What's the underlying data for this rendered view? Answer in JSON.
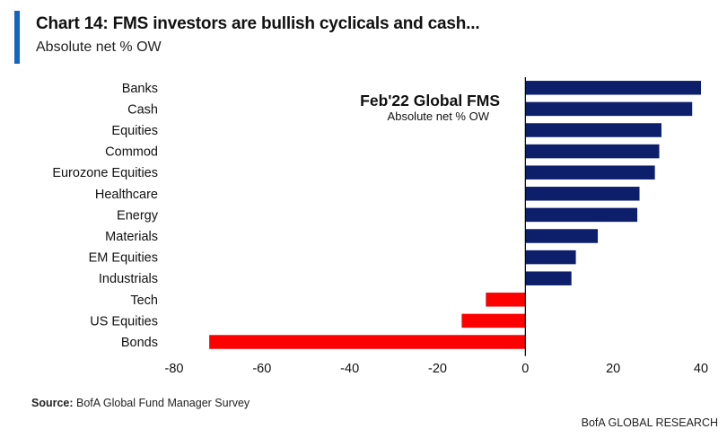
{
  "header": {
    "title": "Chart 14: FMS investors are bullish cyclicals and cash...",
    "subtitle": "Absolute net % OW",
    "accent_color": "#1565c0"
  },
  "chart_data": {
    "type": "bar",
    "orientation": "horizontal",
    "inset_title": "Feb'22 Global FMS",
    "inset_subtitle": "Absolute net % OW",
    "categories": [
      "Banks",
      "Cash",
      "Equities",
      "Commod",
      "Eurozone Equities",
      "Healthcare",
      "Energy",
      "Materials",
      "EM Equities",
      "Industrials",
      "Tech",
      "US Equities",
      "Bonds"
    ],
    "values": [
      40,
      38,
      31,
      30.5,
      29.5,
      26,
      25.5,
      16.5,
      11.5,
      10.5,
      -9,
      -14.5,
      -72
    ],
    "xlim": [
      -80,
      40
    ],
    "xticks": [
      -80,
      -60,
      -40,
      -20,
      0,
      20,
      40
    ],
    "xtick_labels": [
      "-80",
      "-60",
      "-40",
      "-20",
      "0",
      "20",
      "40"
    ],
    "positive_color": "#0d1f6b",
    "negative_color": "#ff0000",
    "grid": false
  },
  "footer": {
    "source_label": "Source:",
    "source_text": " BofA Global Fund Manager Survey",
    "brand": "BofA GLOBAL RESEARCH"
  }
}
